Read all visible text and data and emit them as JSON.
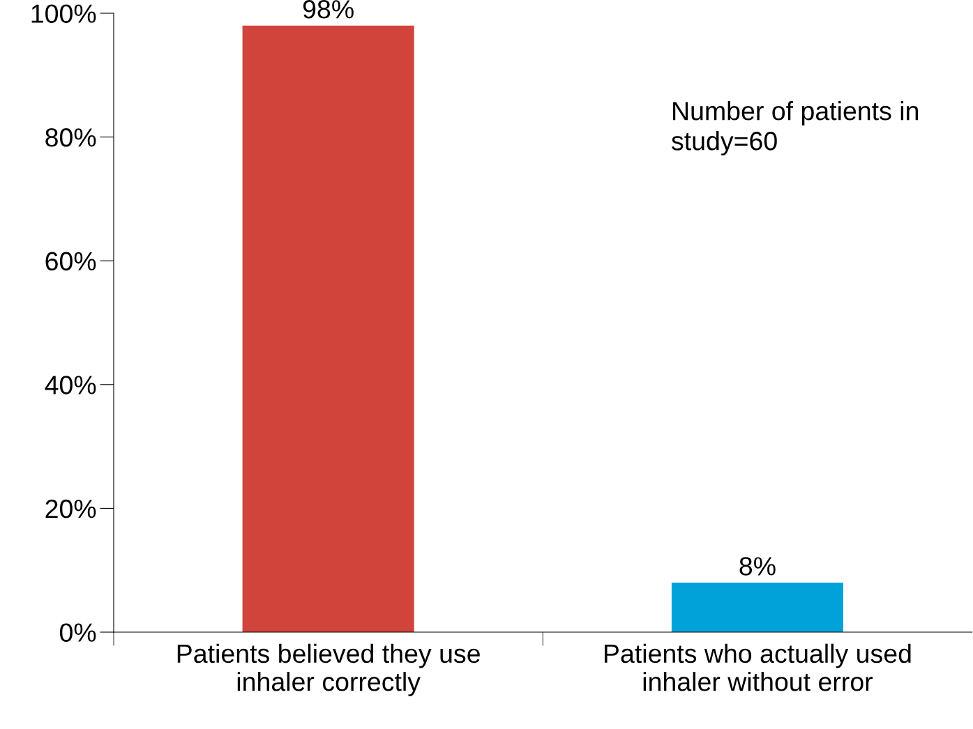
{
  "chart_data": {
    "type": "bar",
    "categories": [
      "Patients believed they use\ninhaler correctly",
      "Patients who actually used\ninhaler without error"
    ],
    "values": [
      98,
      8
    ],
    "colors": [
      "#d0443c",
      "#00a3d9"
    ],
    "value_labels": [
      "98%",
      "8%"
    ],
    "ylim": [
      0,
      100
    ],
    "yticks": [
      {
        "value": 0,
        "label": "0%"
      },
      {
        "value": 20,
        "label": "20%"
      },
      {
        "value": 40,
        "label": "40%"
      },
      {
        "value": 60,
        "label": "60%"
      },
      {
        "value": 80,
        "label": "80%"
      },
      {
        "value": 100,
        "label": "100%"
      }
    ],
    "grid": false,
    "legend": false,
    "annotations": [
      "Number of patients in\nstudy=60"
    ]
  }
}
